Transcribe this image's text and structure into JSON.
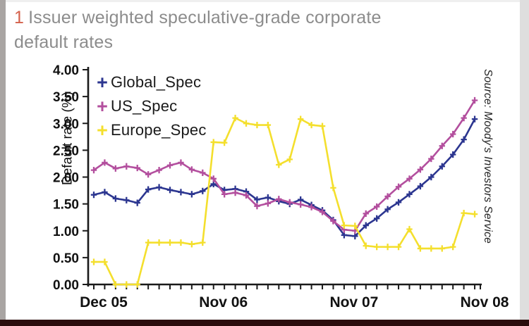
{
  "header": {
    "number": "1",
    "line1": "Issuer weighted speculative-grade corporate",
    "line2": "default rates"
  },
  "source_note": "Source: Moody's Investors Service",
  "colors": {
    "title_gray": "#8c8c8c",
    "title_number_orange": "#d4604b",
    "axis_black": "#1a1a1a",
    "global_navy": "#2c3690",
    "us_magenta": "#b34f9e",
    "europe_yellow": "#f4df2d",
    "bottom_bar_maroon": "#2b0d0d"
  },
  "chart_data": {
    "type": "line",
    "title": "Issuer weighted speculative-grade corporate default rates",
    "xlabel": "",
    "ylabel": "Default rate (%)",
    "ylim": [
      0.0,
      4.0
    ],
    "yticks": [
      0.0,
      0.5,
      1.0,
      1.5,
      2.0,
      2.5,
      3.0,
      3.5,
      4.0
    ],
    "grid": false,
    "legend_position": "upper-left-inside",
    "marker": "plus",
    "x": [
      "Dec 05",
      "Jan 06",
      "Feb 06",
      "Mar 06",
      "Apr 06",
      "May 06",
      "Jun 06",
      "Jul 06",
      "Aug 06",
      "Sep 06",
      "Oct 06",
      "Nov 06",
      "Dec 06",
      "Jan 07",
      "Feb 07",
      "Mar 07",
      "Apr 07",
      "May 07",
      "Jun 07",
      "Jul 07",
      "Aug 07",
      "Sep 07",
      "Oct 07",
      "Nov 07",
      "Dec 07",
      "Jan 08",
      "Feb 08",
      "Mar 08",
      "Apr 08",
      "May 08",
      "Jun 08",
      "Jul 08",
      "Aug 08",
      "Sep 08",
      "Oct 08",
      "Nov 08"
    ],
    "xticks": [
      {
        "label": "Dec 05",
        "index": 0
      },
      {
        "label": "Nov 06",
        "index": 11
      },
      {
        "label": "Nov 07",
        "index": 23
      },
      {
        "label": "Nov 08",
        "index": 35
      }
    ],
    "series": [
      {
        "name": "Global_Spec",
        "color": "#2c3690",
        "values": [
          1.67,
          1.72,
          1.6,
          1.57,
          1.52,
          1.77,
          1.81,
          1.76,
          1.72,
          1.68,
          1.74,
          1.87,
          1.76,
          1.78,
          1.73,
          1.58,
          1.62,
          1.55,
          1.5,
          1.58,
          1.48,
          1.38,
          1.2,
          0.92,
          0.9,
          1.1,
          1.23,
          1.4,
          1.53,
          1.68,
          1.83,
          2.0,
          2.2,
          2.42,
          2.7,
          3.08
        ]
      },
      {
        "name": "US_Spec",
        "color": "#b34f9e",
        "values": [
          2.13,
          2.27,
          2.16,
          2.2,
          2.17,
          2.05,
          2.13,
          2.22,
          2.27,
          2.14,
          2.08,
          1.97,
          1.68,
          1.71,
          1.66,
          1.46,
          1.51,
          1.59,
          1.53,
          1.49,
          1.44,
          1.35,
          1.18,
          1.02,
          1.0,
          1.32,
          1.45,
          1.64,
          1.82,
          1.97,
          2.14,
          2.34,
          2.58,
          2.8,
          3.1,
          3.43
        ]
      },
      {
        "name": "Europe_Spec",
        "color": "#f4df2d",
        "values": [
          0.42,
          0.42,
          0.0,
          0.0,
          0.0,
          0.78,
          0.78,
          0.78,
          0.78,
          0.75,
          0.78,
          2.65,
          2.64,
          3.1,
          3.0,
          2.97,
          2.97,
          2.23,
          2.33,
          3.08,
          2.97,
          2.95,
          1.8,
          1.1,
          1.09,
          0.72,
          0.7,
          0.7,
          0.7,
          1.03,
          0.67,
          0.67,
          0.67,
          0.7,
          1.33,
          1.31
        ]
      }
    ]
  }
}
